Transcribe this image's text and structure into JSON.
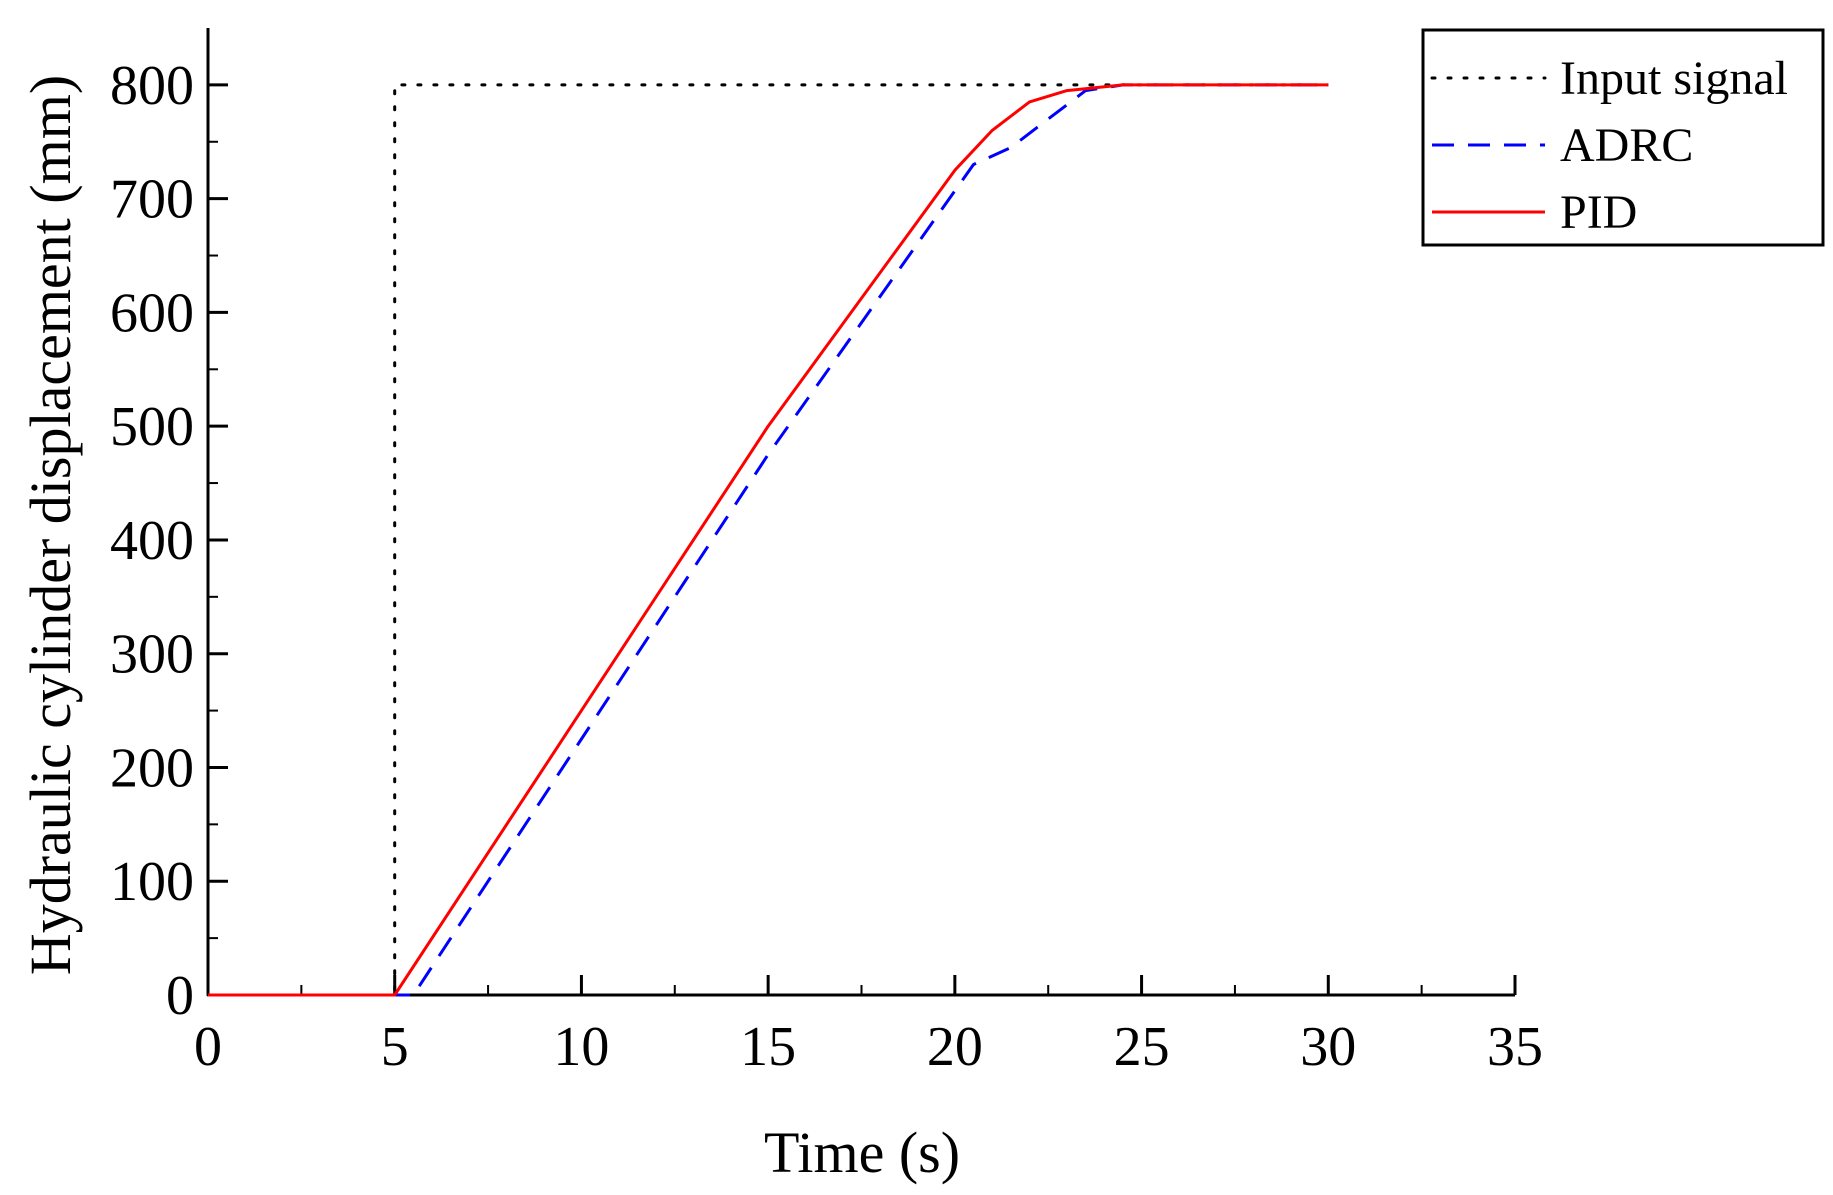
{
  "colors": {
    "input_signal": "#000000",
    "adrc": "#0000ff",
    "pid": "#ff0000",
    "axis": "#000000",
    "background": "#ffffff"
  },
  "chart_data": {
    "type": "line",
    "title": "",
    "xlabel": "Time  (s)",
    "ylabel": "Hydraulic cylinder displacement (mm)",
    "xlim": [
      0,
      35
    ],
    "ylim": [
      0,
      850
    ],
    "xticks": [
      0,
      5,
      10,
      15,
      20,
      25,
      30,
      35
    ],
    "yticks": [
      0,
      100,
      200,
      300,
      400,
      500,
      600,
      700,
      800
    ],
    "x_minor_step": 2.5,
    "y_minor_step": 50,
    "grid": false,
    "legend_position": "top-right",
    "series": [
      {
        "name": "Input signal",
        "style": "dotted",
        "color": "#000000",
        "points": [
          [
            0,
            0
          ],
          [
            5,
            0
          ],
          [
            5,
            800
          ],
          [
            30,
            800
          ]
        ]
      },
      {
        "name": "ADRC",
        "style": "dashed",
        "color": "#0000ff",
        "points": [
          [
            0,
            0
          ],
          [
            5.5,
            0
          ],
          [
            10.5,
            250
          ],
          [
            15,
            475
          ],
          [
            20.5,
            730
          ],
          [
            21.5,
            745
          ],
          [
            22.5,
            770
          ],
          [
            23.5,
            795
          ],
          [
            24.5,
            800
          ],
          [
            30,
            800
          ]
        ]
      },
      {
        "name": "PID",
        "style": "solid",
        "color": "#ff0000",
        "points": [
          [
            0,
            0
          ],
          [
            5,
            0
          ],
          [
            10,
            250
          ],
          [
            15,
            500
          ],
          [
            20,
            725
          ],
          [
            21,
            760
          ],
          [
            22,
            785
          ],
          [
            23,
            795
          ],
          [
            24.5,
            800
          ],
          [
            30,
            800
          ]
        ]
      }
    ]
  }
}
